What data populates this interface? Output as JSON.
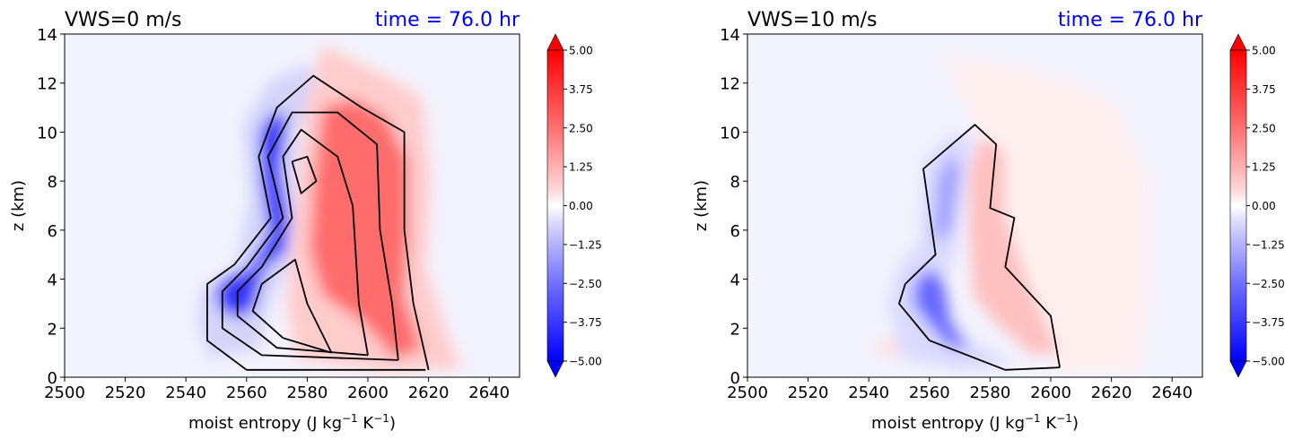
{
  "chart_data": [
    {
      "type": "heatmap",
      "title": "VWS=0 m/s",
      "time_label": "time = 76.0 hr",
      "xlabel": "moist entropy (J kg$^{-1}$ K$^{-1}$)",
      "xlabel_main": "moist entropy (J kg",
      "xlabel_sup1": "−1",
      "xlabel_mid": " K",
      "xlabel_sup2": "−1",
      "xlabel_end": ")",
      "ylabel": "z (km)",
      "xlim": [
        2500,
        2650
      ],
      "ylim": [
        0,
        14
      ],
      "xticks": [
        "2500",
        "2520",
        "2540",
        "2560",
        "2580",
        "2600",
        "2620",
        "2640"
      ],
      "yticks": [
        "0",
        "2",
        "4",
        "6",
        "8",
        "10",
        "12",
        "14"
      ],
      "colorbar": {
        "range": [
          -5.0,
          5.0
        ],
        "ticks": [
          "5.00",
          "3.75",
          "2.50",
          "1.25",
          "0.00",
          "−1.25",
          "−2.50",
          "−3.75",
          "−5.00"
        ]
      },
      "contour_lines": [
        [
          [
            2619,
            0.3
          ],
          [
            2560,
            0.3
          ],
          [
            2547,
            1.5
          ],
          [
            2547,
            3.8
          ],
          [
            2556,
            4.6
          ],
          [
            2568,
            6.5
          ],
          [
            2564,
            9.0
          ],
          [
            2570,
            11.0
          ],
          [
            2582,
            12.3
          ],
          [
            2598,
            11.0
          ],
          [
            2612,
            10.0
          ],
          [
            2612,
            6.0
          ],
          [
            2615,
            3.0
          ],
          [
            2620,
            0.3
          ]
        ],
        [
          [
            2610,
            0.7
          ],
          [
            2565,
            0.9
          ],
          [
            2552,
            2.0
          ],
          [
            2552,
            3.5
          ],
          [
            2560,
            4.5
          ],
          [
            2572,
            6.5
          ],
          [
            2567,
            9.0
          ],
          [
            2575,
            10.8
          ],
          [
            2590,
            10.8
          ],
          [
            2603,
            9.5
          ],
          [
            2604,
            6.0
          ],
          [
            2608,
            3.0
          ],
          [
            2610,
            0.7
          ]
        ],
        [
          [
            2600,
            0.9
          ],
          [
            2570,
            1.2
          ],
          [
            2557,
            2.5
          ],
          [
            2557,
            3.5
          ],
          [
            2565,
            4.5
          ],
          [
            2575,
            6.5
          ],
          [
            2572,
            9.0
          ],
          [
            2578,
            10.1
          ],
          [
            2590,
            9.0
          ],
          [
            2595,
            7.0
          ],
          [
            2597,
            3.0
          ],
          [
            2600,
            0.9
          ]
        ],
        [
          [
            2588,
            1.0
          ],
          [
            2572,
            1.6
          ],
          [
            2562,
            2.7
          ],
          [
            2565,
            3.8
          ],
          [
            2576,
            4.8
          ],
          [
            2580,
            3.0
          ],
          [
            2588,
            1.0
          ]
        ],
        [
          [
            2575,
            8.8
          ],
          [
            2580,
            9.0
          ],
          [
            2583,
            8.0
          ],
          [
            2578,
            7.5
          ],
          [
            2575,
            8.8
          ]
        ]
      ]
    },
    {
      "type": "heatmap",
      "title": "VWS=10 m/s",
      "time_label": "time = 76.0 hr",
      "xlabel": "moist entropy (J kg$^{-1}$ K$^{-1}$)",
      "xlabel_main": "moist entropy (J kg",
      "xlabel_sup1": "−1",
      "xlabel_mid": " K",
      "xlabel_sup2": "−1",
      "xlabel_end": ")",
      "ylabel": "z (km)",
      "xlim": [
        2500,
        2650
      ],
      "ylim": [
        0,
        14
      ],
      "xticks": [
        "2500",
        "2520",
        "2540",
        "2560",
        "2580",
        "2600",
        "2620",
        "2640"
      ],
      "yticks": [
        "0",
        "2",
        "4",
        "6",
        "8",
        "10",
        "12",
        "14"
      ],
      "colorbar": {
        "range": [
          -5.0,
          5.0
        ],
        "ticks": [
          "5.00",
          "3.75",
          "2.50",
          "1.25",
          "0.00",
          "−1.25",
          "−2.50",
          "−3.75",
          "−5.00"
        ]
      },
      "contour_lines": [
        [
          [
            2603,
            0.4
          ],
          [
            2585,
            0.3
          ],
          [
            2560,
            1.5
          ],
          [
            2550,
            3.0
          ],
          [
            2552,
            3.8
          ],
          [
            2562,
            5.0
          ],
          [
            2558,
            8.5
          ],
          [
            2575,
            10.3
          ],
          [
            2582,
            9.5
          ],
          [
            2580,
            6.9
          ],
          [
            2588,
            6.5
          ],
          [
            2585,
            4.5
          ],
          [
            2600,
            2.5
          ],
          [
            2603,
            0.4
          ]
        ]
      ]
    }
  ]
}
